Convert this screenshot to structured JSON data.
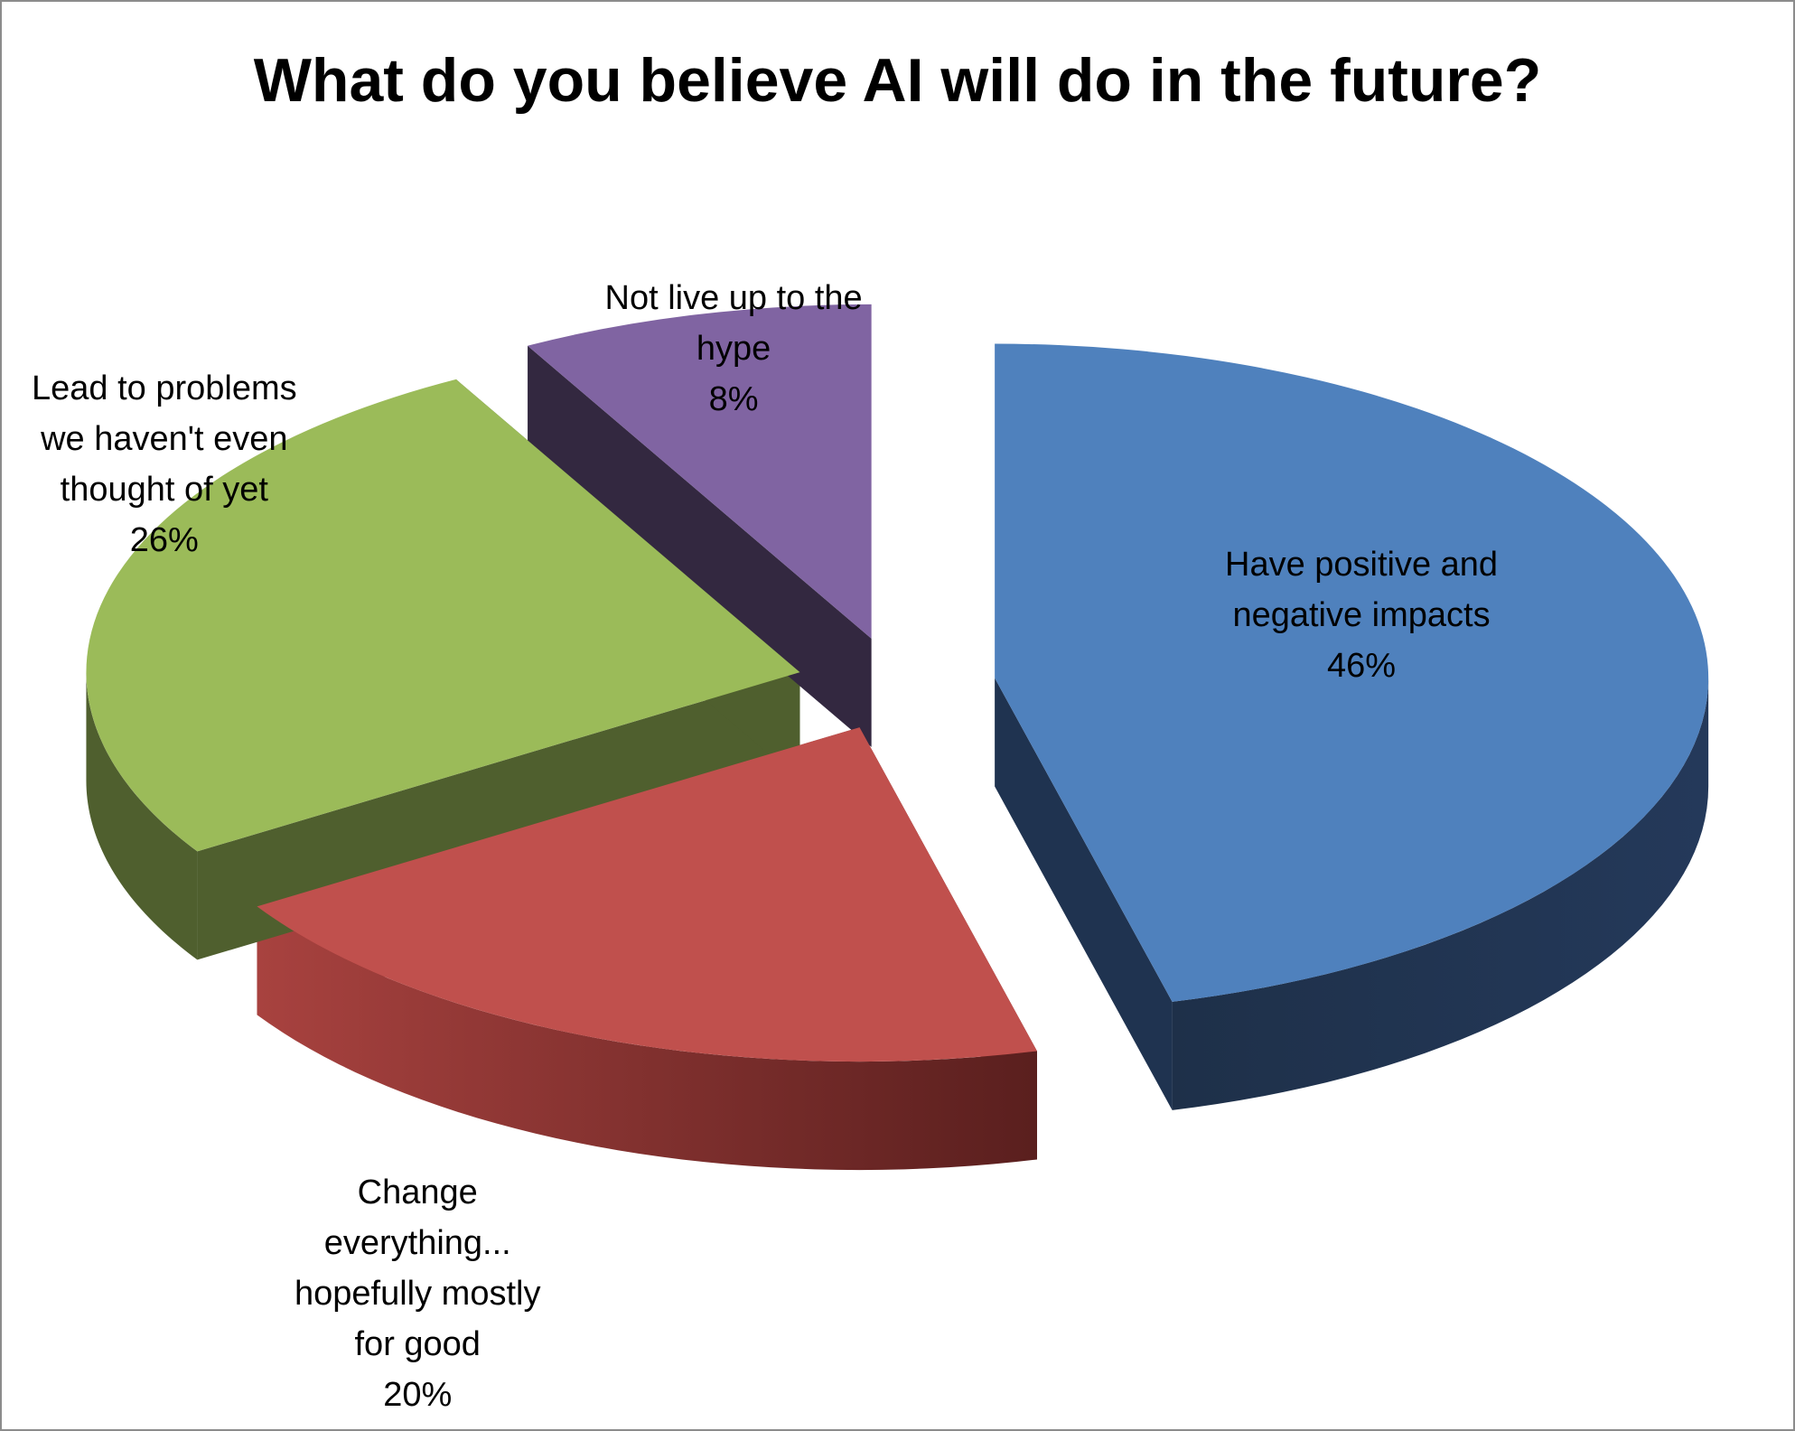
{
  "chart_data": {
    "type": "pie",
    "title": "What do you believe AI will do in the future?",
    "style": "3d-exploded",
    "slices": [
      {
        "key": "positive-negative",
        "label_lines": [
          "Have positive and",
          "negative impacts"
        ],
        "value": 46,
        "value_label": "46%",
        "color": "#4F81BD",
        "side_color": "#1F3350"
      },
      {
        "key": "change-everything",
        "label_lines": [
          "Change",
          "everything...",
          "hopefully mostly",
          "for good"
        ],
        "value": 20,
        "value_label": "20%",
        "color": "#C0504D",
        "side_color": "#7A2A28"
      },
      {
        "key": "lead-to-problems",
        "label_lines": [
          "Lead to problems",
          "we haven't even",
          "thought of yet"
        ],
        "value": 26,
        "value_label": "26%",
        "color": "#9BBB59",
        "side_color": "#4F5F2E"
      },
      {
        "key": "not-live-up",
        "label_lines": [
          "Not live up to the",
          "hype"
        ],
        "value": 8,
        "value_label": "8%",
        "color": "#8064A2",
        "side_color": "#332840"
      }
    ]
  }
}
